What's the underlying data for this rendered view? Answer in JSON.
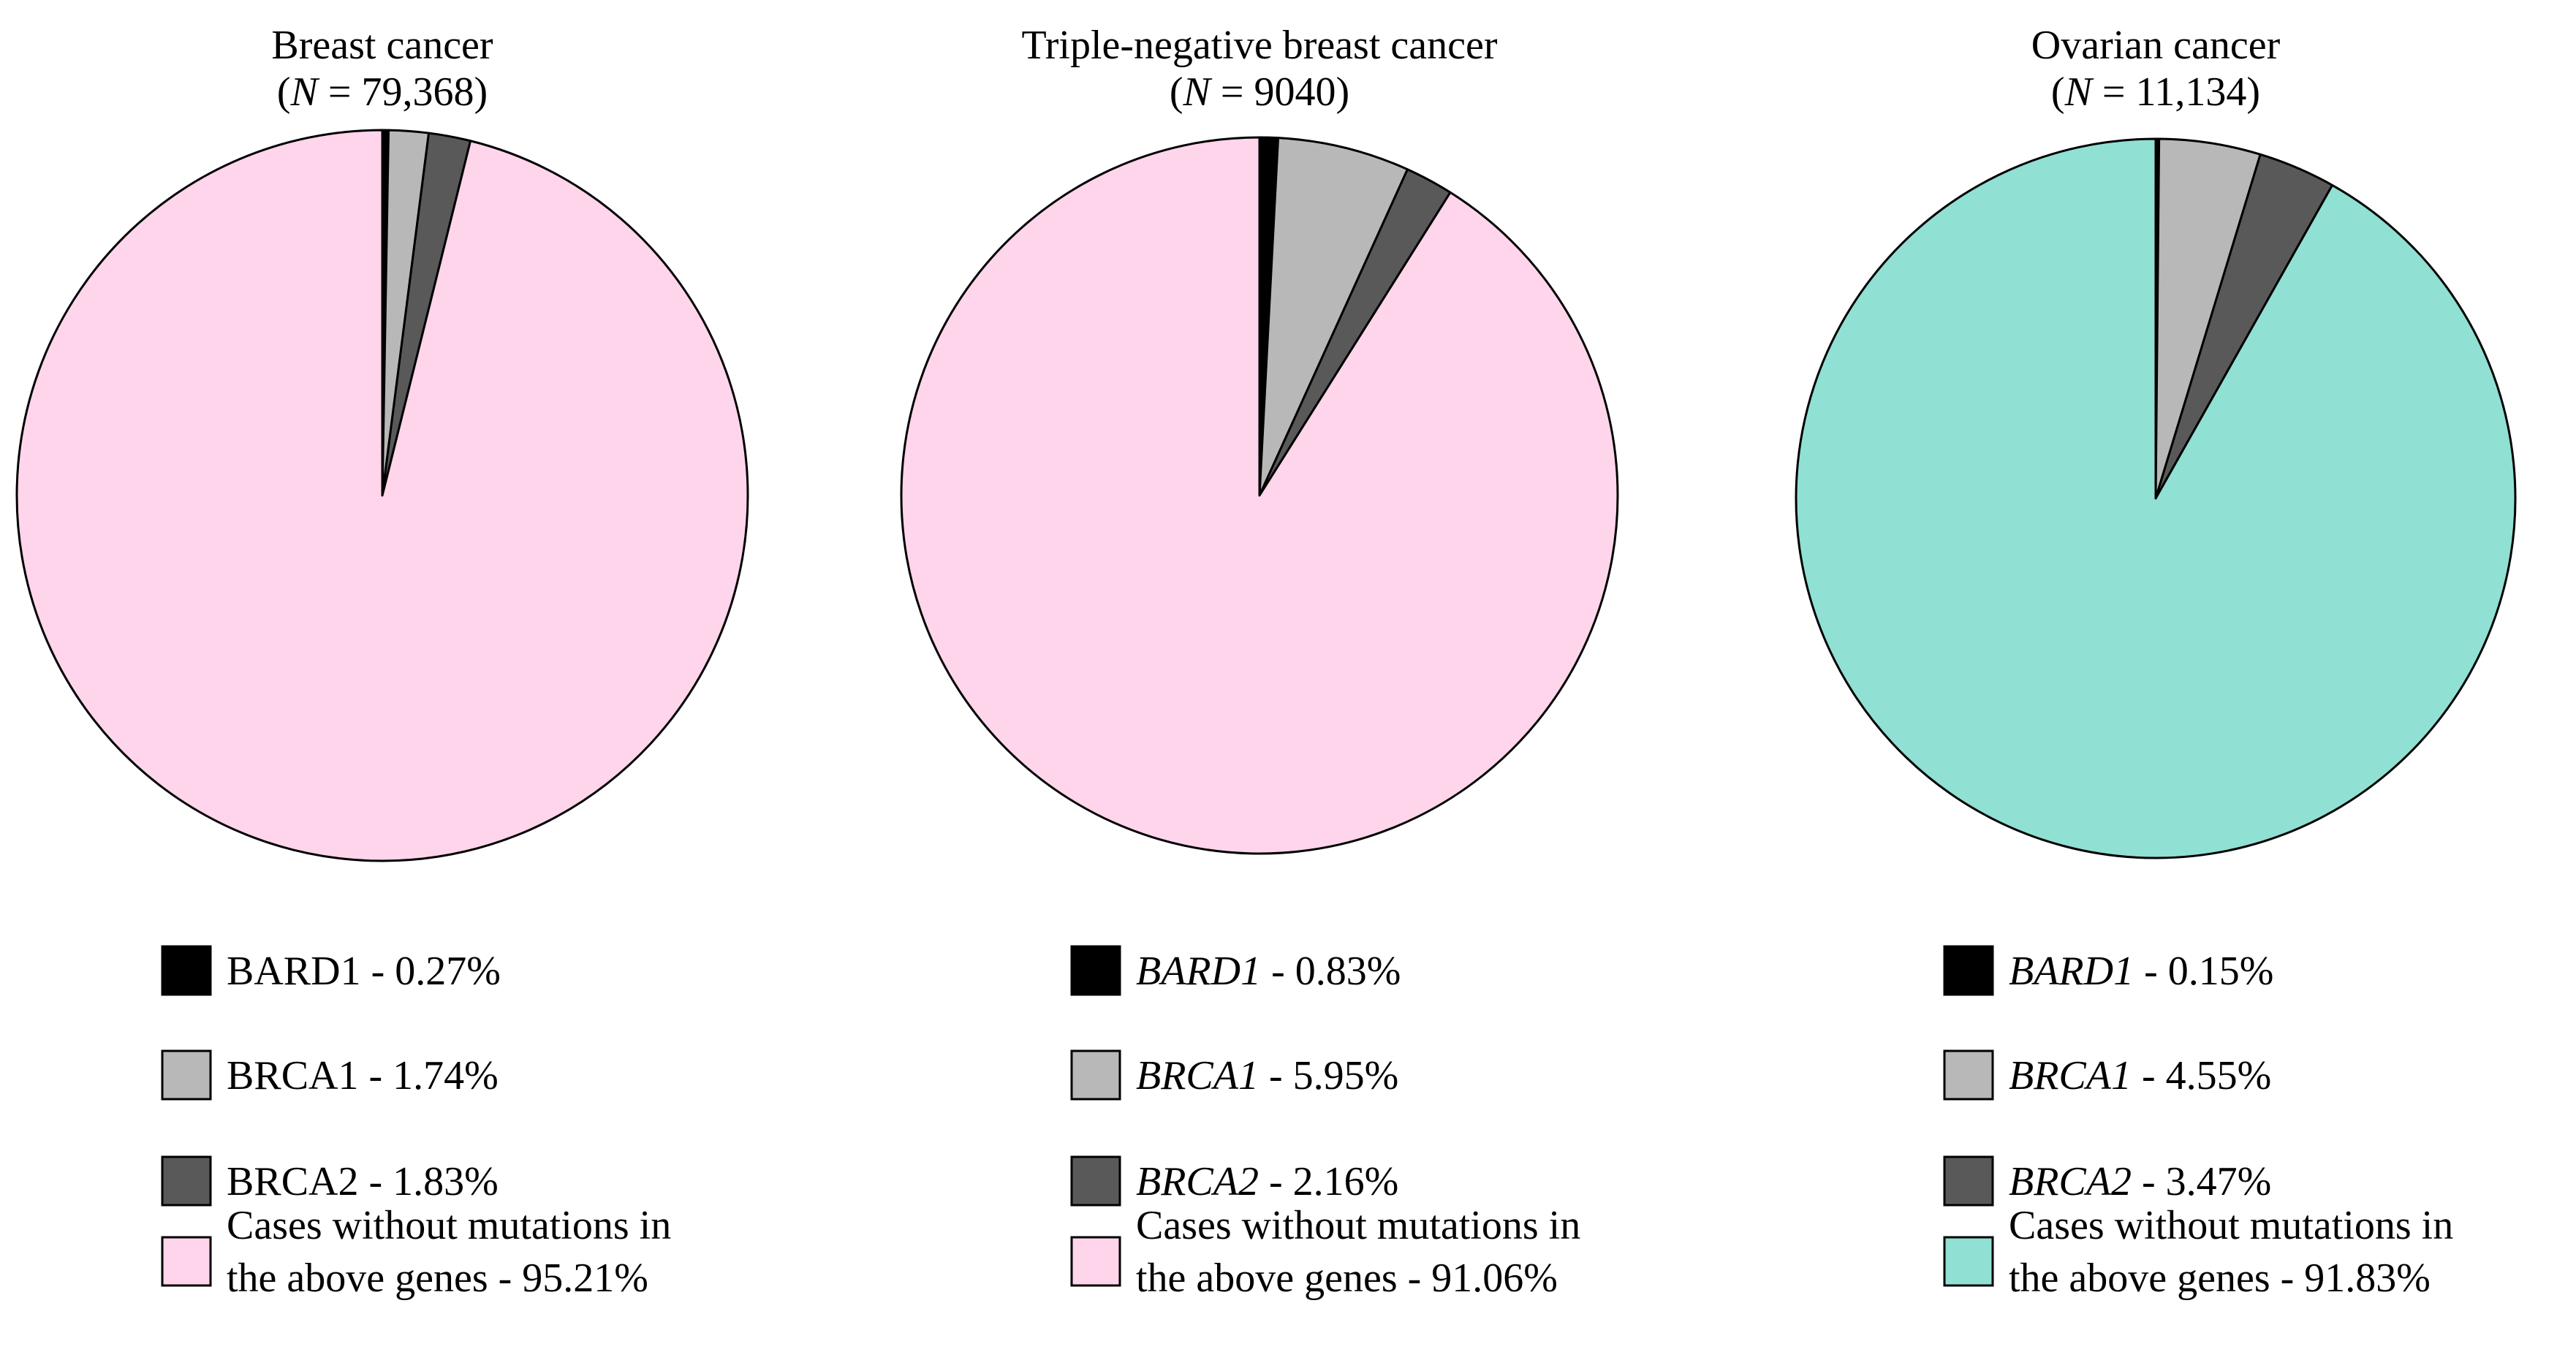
{
  "chart_data": [
    {
      "type": "pie",
      "title": "Breast cancer",
      "n_label": "N",
      "n_value": "79,368",
      "gene_italic": false,
      "slices": [
        {
          "label": "BARD1",
          "value": 0.27,
          "legend": "0.27%",
          "color": "#000000"
        },
        {
          "label": "BRCA1",
          "value": 1.74,
          "legend": "1.74%",
          "color": "#b8b8b8"
        },
        {
          "label": "BRCA2",
          "value": 1.83,
          "legend": "1.83%",
          "color": "#595959"
        },
        {
          "label": "Cases without mutations in the above genes",
          "value": 95.21,
          "legend": "95.21%",
          "color": "#fed5eb",
          "legend_lines": [
            "Cases without mutations in",
            "the above genes - 95.21%"
          ]
        }
      ]
    },
    {
      "type": "pie",
      "title": "Triple-negative breast cancer",
      "n_label": "N",
      "n_value": "9040",
      "gene_italic": true,
      "slices": [
        {
          "label": "BARD1",
          "value": 0.83,
          "legend": "0.83%",
          "color": "#000000"
        },
        {
          "label": "BRCA1",
          "value": 5.95,
          "legend": "5.95%",
          "color": "#b8b8b8"
        },
        {
          "label": "BRCA2",
          "value": 2.16,
          "legend": "2.16%",
          "color": "#595959"
        },
        {
          "label": "Cases without mutations in the above genes",
          "value": 91.06,
          "legend": "91.06%",
          "color": "#fed5eb",
          "legend_lines": [
            "Cases without mutations in",
            "the above genes - 91.06%"
          ]
        }
      ]
    },
    {
      "type": "pie",
      "title": "Ovarian cancer",
      "n_label": "N",
      "n_value": "11,134",
      "gene_italic": true,
      "slices": [
        {
          "label": "BARD1",
          "value": 0.15,
          "legend": "0.15%",
          "color": "#000000"
        },
        {
          "label": "BRCA1",
          "value": 4.55,
          "legend": "4.55%",
          "color": "#b8b8b8"
        },
        {
          "label": "BRCA2",
          "value": 3.47,
          "legend": "3.47%",
          "color": "#595959"
        },
        {
          "label": "Cases without mutations in the above genes",
          "value": 91.83,
          "legend": "91.83%",
          "color": "#90e0d3",
          "legend_lines": [
            "Cases without mutations in",
            "the above genes - 91.83%"
          ]
        }
      ]
    }
  ]
}
